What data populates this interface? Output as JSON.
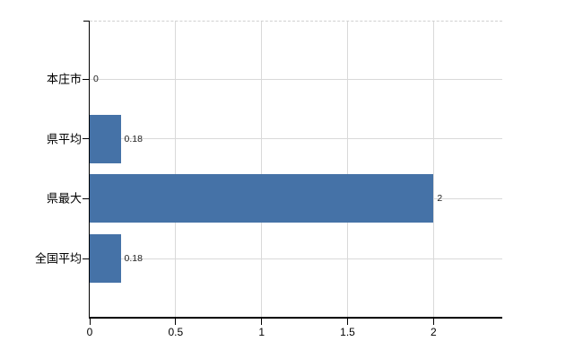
{
  "chart_data": {
    "type": "bar",
    "orientation": "horizontal",
    "title": "",
    "xlabel": "",
    "ylabel": "",
    "categories": [
      "本庄市",
      "県平均",
      "県最大",
      "全国平均"
    ],
    "values": [
      0,
      0.18,
      2,
      0.18
    ],
    "value_labels": [
      "0",
      "0.18",
      "2",
      "0.18"
    ],
    "xlim": [
      0,
      2.4
    ],
    "xticks": [
      0,
      0.5,
      1,
      1.5,
      2
    ],
    "xtick_labels": [
      "0",
      "0.5",
      "1",
      "1.5",
      "2"
    ],
    "grid": true,
    "legend": false,
    "colors": {
      "bar": "#4572a7",
      "grid": "#d9d9d9",
      "plot_top_border": "#d0d0d0",
      "axis": "#000000",
      "category_text": "#000000",
      "value_text": "#222222",
      "tick_text": "#000000",
      "background": "#ffffff"
    }
  }
}
